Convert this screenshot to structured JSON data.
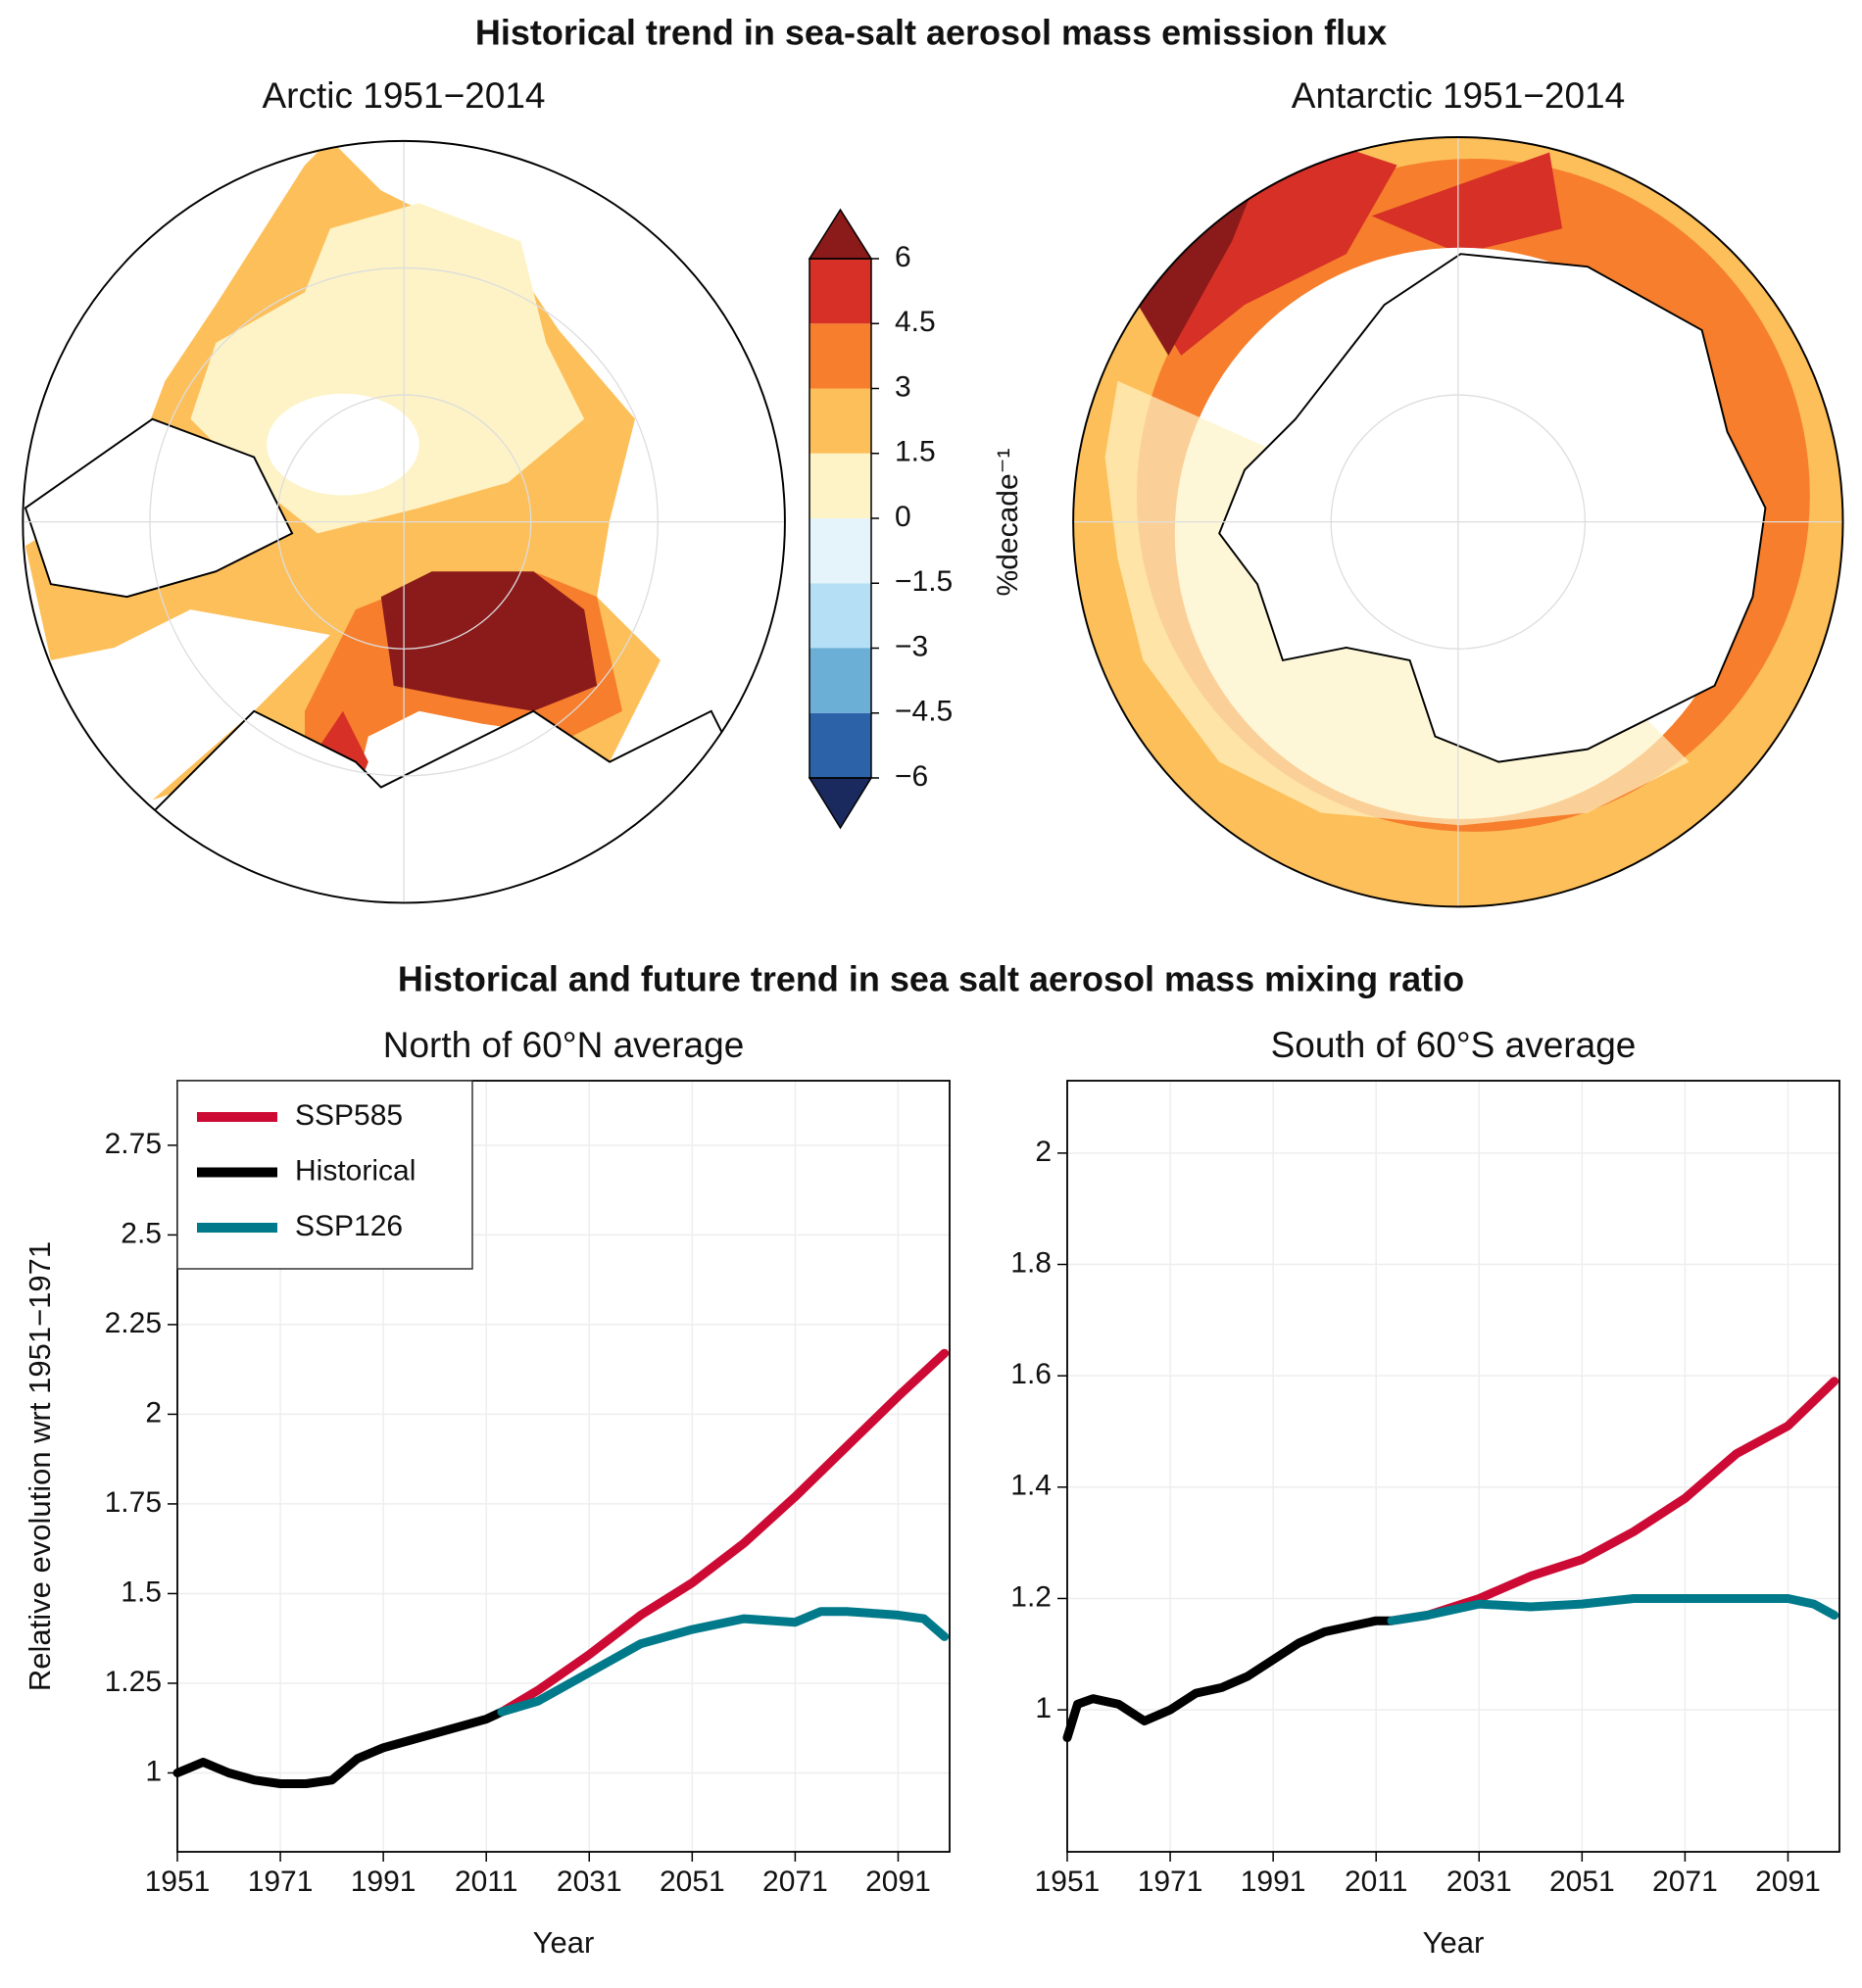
{
  "title": "Historical trend in sea-salt aerosol mass emission flux",
  "maps": [
    {
      "title": "Arctic 1951−2014"
    },
    {
      "title": "Antarctic 1951−2014"
    }
  ],
  "colorbar": {
    "label": "%decade⁻¹",
    "ticks": [
      {
        "value": -6,
        "label": "−6"
      },
      {
        "value": -4.5,
        "label": "−4.5"
      },
      {
        "value": -3,
        "label": "−3"
      },
      {
        "value": -1.5,
        "label": "−1.5"
      },
      0,
      1.5,
      3,
      4.5,
      6
    ],
    "colors": [
      "#2b62a8",
      "#6baed6",
      "#b4dff5",
      "#e5f4fb",
      "#fef3c6",
      "#fdbf5a",
      "#f67e2c",
      "#d73027"
    ],
    "extend_colors": [
      "#1b2a5e",
      "#8b1a1a"
    ]
  },
  "subtitle": "Historical and future trend in sea salt aerosol mass mixing ratio",
  "chart_data": [
    {
      "type": "line",
      "title": "North of 60°N average",
      "xlabel": "Year",
      "ylabel": "Relative evolution wrt 1951−1971",
      "xlim": [
        1951,
        2101
      ],
      "xticks": [
        1951,
        1971,
        1991,
        2011,
        2031,
        2051,
        2071,
        2091
      ],
      "ylim": [
        0.78,
        2.93
      ],
      "yticks": [
        1,
        1.25,
        1.5,
        1.75,
        2,
        2.25,
        2.5,
        2.75
      ],
      "grid": true,
      "legend": "upper left",
      "series": [
        {
          "name": "SSP585",
          "color": "#cc0a34",
          "x": [
            2014,
            2021,
            2031,
            2041,
            2051,
            2061,
            2071,
            2081,
            2091,
            2100
          ],
          "values": [
            1.17,
            1.23,
            1.33,
            1.44,
            1.53,
            1.64,
            1.77,
            1.91,
            2.05,
            2.17
          ]
        },
        {
          "name": "Historical",
          "color": "#000000",
          "x": [
            1951,
            1956,
            1961,
            1966,
            1971,
            1976,
            1981,
            1986,
            1991,
            1996,
            2001,
            2006,
            2011,
            2014
          ],
          "values": [
            1.0,
            1.03,
            1.0,
            0.98,
            0.97,
            0.97,
            0.98,
            1.04,
            1.07,
            1.09,
            1.11,
            1.13,
            1.15,
            1.17
          ]
        },
        {
          "name": "SSP126",
          "color": "#007a8a",
          "x": [
            2014,
            2021,
            2031,
            2041,
            2051,
            2061,
            2071,
            2076,
            2081,
            2091,
            2096,
            2100
          ],
          "values": [
            1.17,
            1.2,
            1.28,
            1.36,
            1.4,
            1.43,
            1.42,
            1.45,
            1.45,
            1.44,
            1.43,
            1.38
          ]
        }
      ]
    },
    {
      "type": "line",
      "title": "South of 60°S average",
      "xlabel": "Year",
      "xlim": [
        1951,
        2101
      ],
      "xticks": [
        1951,
        1971,
        1991,
        2011,
        2031,
        2051,
        2071,
        2091
      ],
      "ylim": [
        0.745,
        2.13
      ],
      "yticks": [
        1,
        1.2,
        1.4,
        1.6,
        1.8,
        2
      ],
      "grid": true,
      "series": [
        {
          "color": "#cc0a34",
          "x": [
            2014,
            2021,
            2031,
            2041,
            2051,
            2061,
            2071,
            2081,
            2091,
            2100
          ],
          "values": [
            1.16,
            1.17,
            1.2,
            1.24,
            1.27,
            1.32,
            1.38,
            1.46,
            1.51,
            1.59
          ]
        },
        {
          "color": "#000000",
          "x": [
            1951,
            1953,
            1956,
            1961,
            1966,
            1971,
            1976,
            1981,
            1986,
            1991,
            1996,
            2001,
            2006,
            2011,
            2014
          ],
          "values": [
            0.95,
            1.01,
            1.02,
            1.01,
            0.98,
            1.0,
            1.03,
            1.04,
            1.06,
            1.09,
            1.12,
            1.14,
            1.15,
            1.16,
            1.16
          ]
        },
        {
          "color": "#007a8a",
          "x": [
            2014,
            2021,
            2031,
            2041,
            2051,
            2061,
            2071,
            2081,
            2091,
            2096,
            2100
          ],
          "values": [
            1.16,
            1.17,
            1.19,
            1.185,
            1.19,
            1.2,
            1.2,
            1.2,
            1.2,
            1.19,
            1.17
          ]
        }
      ]
    }
  ]
}
